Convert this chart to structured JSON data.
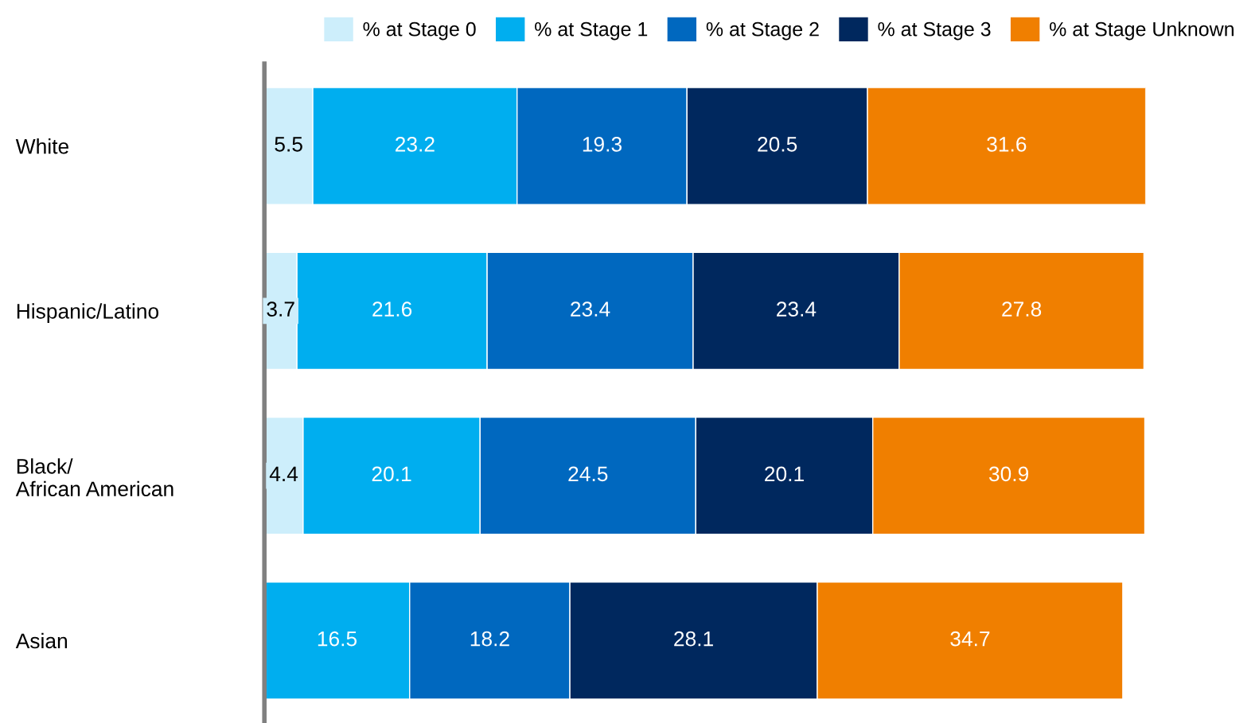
{
  "chart_data": {
    "type": "bar",
    "orientation": "horizontal",
    "stacked": true,
    "data_labels": true,
    "grid": false,
    "legend": "top",
    "categories": [
      "White",
      "Hispanic/Latino",
      "Black/\nAfrican American",
      "Asian"
    ],
    "series": [
      {
        "name": "% at Stage 0",
        "color": "#cdeefb",
        "values": [
          5.5,
          3.7,
          4.4,
          null
        ]
      },
      {
        "name": "% at Stage 1",
        "color": "#00aeef",
        "values": [
          23.2,
          21.6,
          20.1,
          16.5
        ]
      },
      {
        "name": "% at Stage 2",
        "color": "#0068bf",
        "values": [
          19.3,
          23.4,
          24.5,
          18.2
        ]
      },
      {
        "name": "% at Stage 3",
        "color": "#00285e",
        "values": [
          20.5,
          23.4,
          20.1,
          28.1
        ]
      },
      {
        "name": "% at Stage Unknown",
        "color": "#f07f00",
        "values": [
          31.6,
          27.8,
          30.9,
          34.7
        ]
      }
    ]
  }
}
